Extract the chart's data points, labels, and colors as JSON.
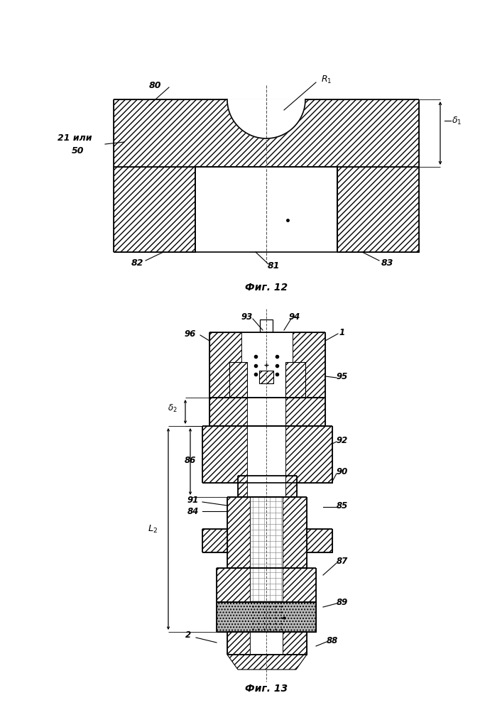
{
  "fig_width": 7.07,
  "fig_height": 10.0,
  "bg_color": "#ffffff",
  "fig12_caption": "Фиг. 12",
  "fig13_caption": "Фиг. 13"
}
